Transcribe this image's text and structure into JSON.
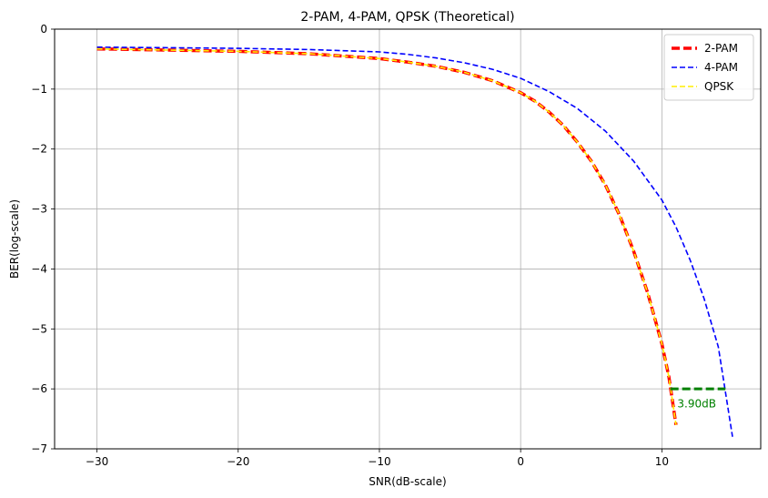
{
  "chart_data": {
    "type": "line",
    "title": "2-PAM, 4-PAM, QPSK (Theoretical)",
    "xlabel": "SNR(dB-scale)",
    "ylabel": "BER(log-scale)",
    "xlim": [
      -33,
      17
    ],
    "ylim": [
      -7,
      0
    ],
    "xticks": [
      -30,
      -20,
      -10,
      0,
      10
    ],
    "xtick_labels": [
      "−30",
      "−20",
      "−10",
      "0",
      "10"
    ],
    "yticks": [
      0,
      -1,
      -2,
      -3,
      -4,
      -5,
      -6,
      -7
    ],
    "ytick_labels": [
      "0",
      "−1",
      "−2",
      "−3",
      "−4",
      "−5",
      "−6",
      "−7"
    ],
    "grid": true,
    "legend_position": "top-right",
    "series": [
      {
        "name": "2-PAM",
        "color": "#ff0000",
        "style": "dashed-thick",
        "x": [
          -30,
          -25,
          -20,
          -15,
          -10,
          -8,
          -6,
          -4,
          -2,
          0,
          1,
          2,
          3,
          4,
          5,
          6,
          7,
          8,
          9,
          10,
          10.5,
          11
        ],
        "y": [
          -0.33,
          -0.35,
          -0.37,
          -0.41,
          -0.49,
          -0.55,
          -0.62,
          -0.72,
          -0.86,
          -1.06,
          -1.2,
          -1.38,
          -1.6,
          -1.88,
          -2.2,
          -2.6,
          -3.1,
          -3.7,
          -4.4,
          -5.25,
          -5.8,
          -6.6
        ]
      },
      {
        "name": "4-PAM",
        "color": "#0000ff",
        "style": "dashed",
        "x": [
          -30,
          -25,
          -20,
          -15,
          -10,
          -8,
          -6,
          -4,
          -2,
          0,
          2,
          4,
          6,
          8,
          10,
          11,
          12,
          13,
          14,
          15
        ],
        "y": [
          -0.3,
          -0.31,
          -0.32,
          -0.34,
          -0.38,
          -0.42,
          -0.48,
          -0.56,
          -0.67,
          -0.82,
          -1.04,
          -1.32,
          -1.7,
          -2.2,
          -2.85,
          -3.3,
          -3.85,
          -4.5,
          -5.3,
          -6.8
        ]
      },
      {
        "name": "QPSK",
        "color": "#ffee00",
        "style": "dashed",
        "x": [
          -30,
          -25,
          -20,
          -15,
          -10,
          -8,
          -6,
          -4,
          -2,
          0,
          1,
          2,
          3,
          4,
          5,
          6,
          7,
          8,
          9,
          10,
          10.5,
          11
        ],
        "y": [
          -0.33,
          -0.35,
          -0.37,
          -0.41,
          -0.49,
          -0.55,
          -0.62,
          -0.72,
          -0.86,
          -1.06,
          -1.2,
          -1.38,
          -1.6,
          -1.88,
          -2.2,
          -2.6,
          -3.1,
          -3.7,
          -4.4,
          -5.25,
          -5.8,
          -6.6
        ]
      }
    ],
    "annotation": {
      "text": "3.90dB",
      "color": "#008000",
      "line_x": [
        10.6,
        14.5
      ],
      "line_y": -6,
      "text_x": 11.1,
      "text_y": -6.25
    }
  }
}
